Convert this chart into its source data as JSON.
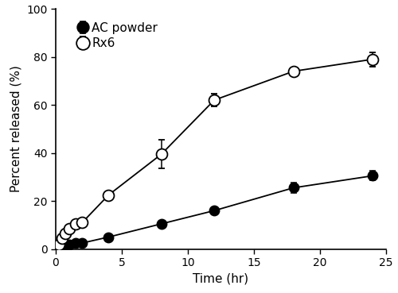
{
  "ac_powder_x": [
    0,
    0.25,
    0.5,
    0.75,
    1.0,
    1.5,
    2.0,
    4.0,
    8.0,
    12.0,
    18.0,
    24.0
  ],
  "ac_powder_y": [
    0,
    0.5,
    1.0,
    1.5,
    2.0,
    2.5,
    2.5,
    5.0,
    10.5,
    16.0,
    25.5,
    30.5
  ],
  "ac_powder_err": [
    0,
    0.3,
    0.3,
    0.4,
    0.4,
    0.5,
    0.5,
    0.8,
    1.0,
    1.5,
    2.0,
    2.0
  ],
  "rx6_x": [
    0,
    0.25,
    0.5,
    0.75,
    1.0,
    1.5,
    2.0,
    4.0,
    8.0,
    12.0,
    18.0,
    24.0
  ],
  "rx6_y": [
    0,
    2.0,
    4.5,
    6.5,
    8.5,
    10.5,
    11.0,
    22.5,
    39.5,
    62.0,
    74.0,
    79.0
  ],
  "rx6_err": [
    0,
    0.5,
    0.5,
    0.8,
    1.0,
    1.0,
    1.0,
    1.5,
    6.0,
    2.5,
    1.5,
    3.0
  ],
  "xlabel": "Time (hr)",
  "ylabel": "Percent released (%)",
  "xlim": [
    0,
    25
  ],
  "ylim": [
    0,
    100
  ],
  "xticks": [
    0,
    5,
    10,
    15,
    20,
    25
  ],
  "yticks": [
    0,
    20,
    40,
    60,
    80,
    100
  ],
  "legend_ac": "AC powder",
  "legend_rx6": "Rx6",
  "bg_color": "#ffffff",
  "line_color": "#000000",
  "marker_size_filled": 9,
  "marker_size_open": 10,
  "capsize": 3,
  "linewidth": 1.3,
  "elinewidth": 1.1
}
